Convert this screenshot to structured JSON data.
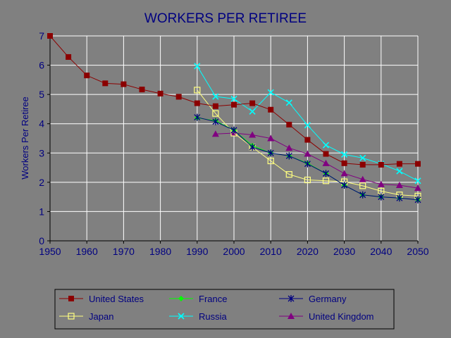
{
  "chart_data": {
    "type": "line",
    "title": "WORKERS PER RETIREE",
    "xlabel": "",
    "ylabel": "Workers Per Retiree",
    "xlim": [
      1950,
      2050
    ],
    "ylim": [
      0,
      7
    ],
    "x_ticks": [
      1950,
      1960,
      1970,
      1980,
      1990,
      2000,
      2010,
      2020,
      2030,
      2040,
      2050
    ],
    "y_ticks": [
      0,
      1,
      2,
      3,
      4,
      5,
      6,
      7
    ],
    "grid": true,
    "legend": "bottom",
    "background": "#808080",
    "series": [
      {
        "name": "United States",
        "color": "#8b0000",
        "marker": "square",
        "x": [
          1950,
          1955,
          1960,
          1965,
          1970,
          1975,
          1980,
          1985,
          1990,
          1995,
          2000,
          2005,
          2010,
          2015,
          2020,
          2025,
          2030,
          2035,
          2040,
          2045,
          2050
        ],
        "y": [
          7.0,
          6.28,
          5.65,
          5.38,
          5.35,
          5.17,
          5.03,
          4.92,
          4.7,
          4.6,
          4.65,
          4.7,
          4.48,
          3.97,
          3.45,
          2.97,
          2.65,
          2.6,
          2.6,
          2.63,
          2.63
        ]
      },
      {
        "name": "France",
        "color": "#00ff00",
        "marker": "diamond",
        "x": [
          1990,
          1995,
          2000,
          2005,
          2010,
          2015,
          2020,
          2025,
          2030,
          2035,
          2040,
          2045,
          2050
        ],
        "y": [
          4.2,
          4.1,
          3.78,
          3.25,
          3.0,
          2.9,
          2.65,
          2.3,
          1.9,
          1.57,
          1.5,
          1.46,
          1.4
        ]
      },
      {
        "name": "Germany",
        "color": "#000080",
        "marker": "asterisk",
        "x": [
          1990,
          1995,
          2000,
          2005,
          2010,
          2015,
          2020,
          2025,
          2030,
          2035,
          2040,
          2045,
          2050
        ],
        "y": [
          4.22,
          4.07,
          3.78,
          3.2,
          3.0,
          2.9,
          2.63,
          2.3,
          1.9,
          1.57,
          1.5,
          1.46,
          1.4
        ]
      },
      {
        "name": "Japan",
        "color": "#ffff80",
        "marker": "open-square",
        "x": [
          1990,
          1995,
          2000,
          2005,
          2010,
          2015,
          2020,
          2025,
          2030,
          2035,
          2040,
          2045,
          2050
        ],
        "y": [
          5.15,
          4.35,
          3.68,
          3.2,
          2.73,
          2.27,
          2.08,
          2.05,
          2.02,
          1.88,
          1.7,
          1.57,
          1.53
        ]
      },
      {
        "name": "Russia",
        "color": "#00ffff",
        "marker": "x",
        "x": [
          1990,
          1995,
          2000,
          2005,
          2010,
          2015,
          2020,
          2025,
          2030,
          2035,
          2040,
          2045,
          2050
        ],
        "y": [
          5.97,
          4.93,
          4.85,
          4.42,
          5.07,
          4.72,
          3.95,
          3.27,
          2.95,
          2.83,
          2.63,
          2.38,
          2.05
        ]
      },
      {
        "name": "United Kingdom",
        "color": "#800080",
        "marker": "triangle",
        "x": [
          1995,
          2000,
          2005,
          2010,
          2015,
          2020,
          2025,
          2030,
          2035,
          2040,
          2045,
          2050
        ],
        "y": [
          3.65,
          3.68,
          3.62,
          3.5,
          3.17,
          2.97,
          2.65,
          2.3,
          2.1,
          1.93,
          1.9,
          1.8
        ]
      }
    ],
    "legend_order": [
      "United States",
      "France",
      "Germany",
      "Japan",
      "Russia",
      "United Kingdom"
    ]
  }
}
